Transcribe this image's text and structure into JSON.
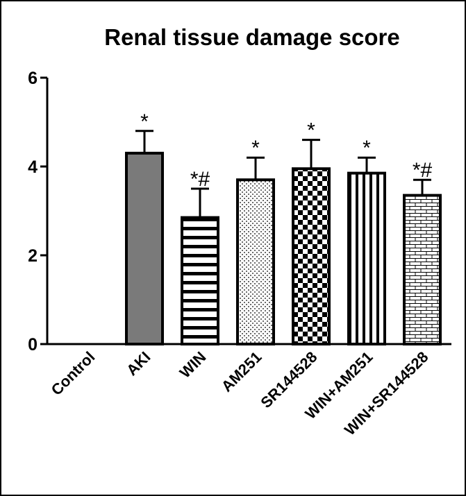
{
  "chart_data": {
    "type": "bar",
    "title": "Renal tissue damage score",
    "xlabel": "",
    "ylabel": "",
    "ylim": [
      0,
      6
    ],
    "yticks": [
      "0",
      "2",
      "4",
      "6"
    ],
    "grid": false,
    "categories": [
      "Control",
      "AKI",
      "WIN",
      "AM251",
      "SR144528",
      "WIN+AM251",
      "WIN+SR144528"
    ],
    "values": [
      0,
      4.3,
      2.85,
      3.7,
      3.95,
      3.85,
      3.35
    ],
    "errors": [
      0,
      0.5,
      0.65,
      0.5,
      0.65,
      0.35,
      0.35
    ],
    "annotations": [
      "",
      "*",
      "*#",
      "*",
      "*",
      "*",
      "*#"
    ],
    "patterns": [
      "none",
      "solid-gray",
      "horizontal-stripes",
      "dots",
      "checkerboard",
      "vertical-stripes",
      "bricks"
    ],
    "colors": {
      "bar_outline": "#000000",
      "solid_fill": "#7a7a7a",
      "background": "#ffffff"
    }
  }
}
